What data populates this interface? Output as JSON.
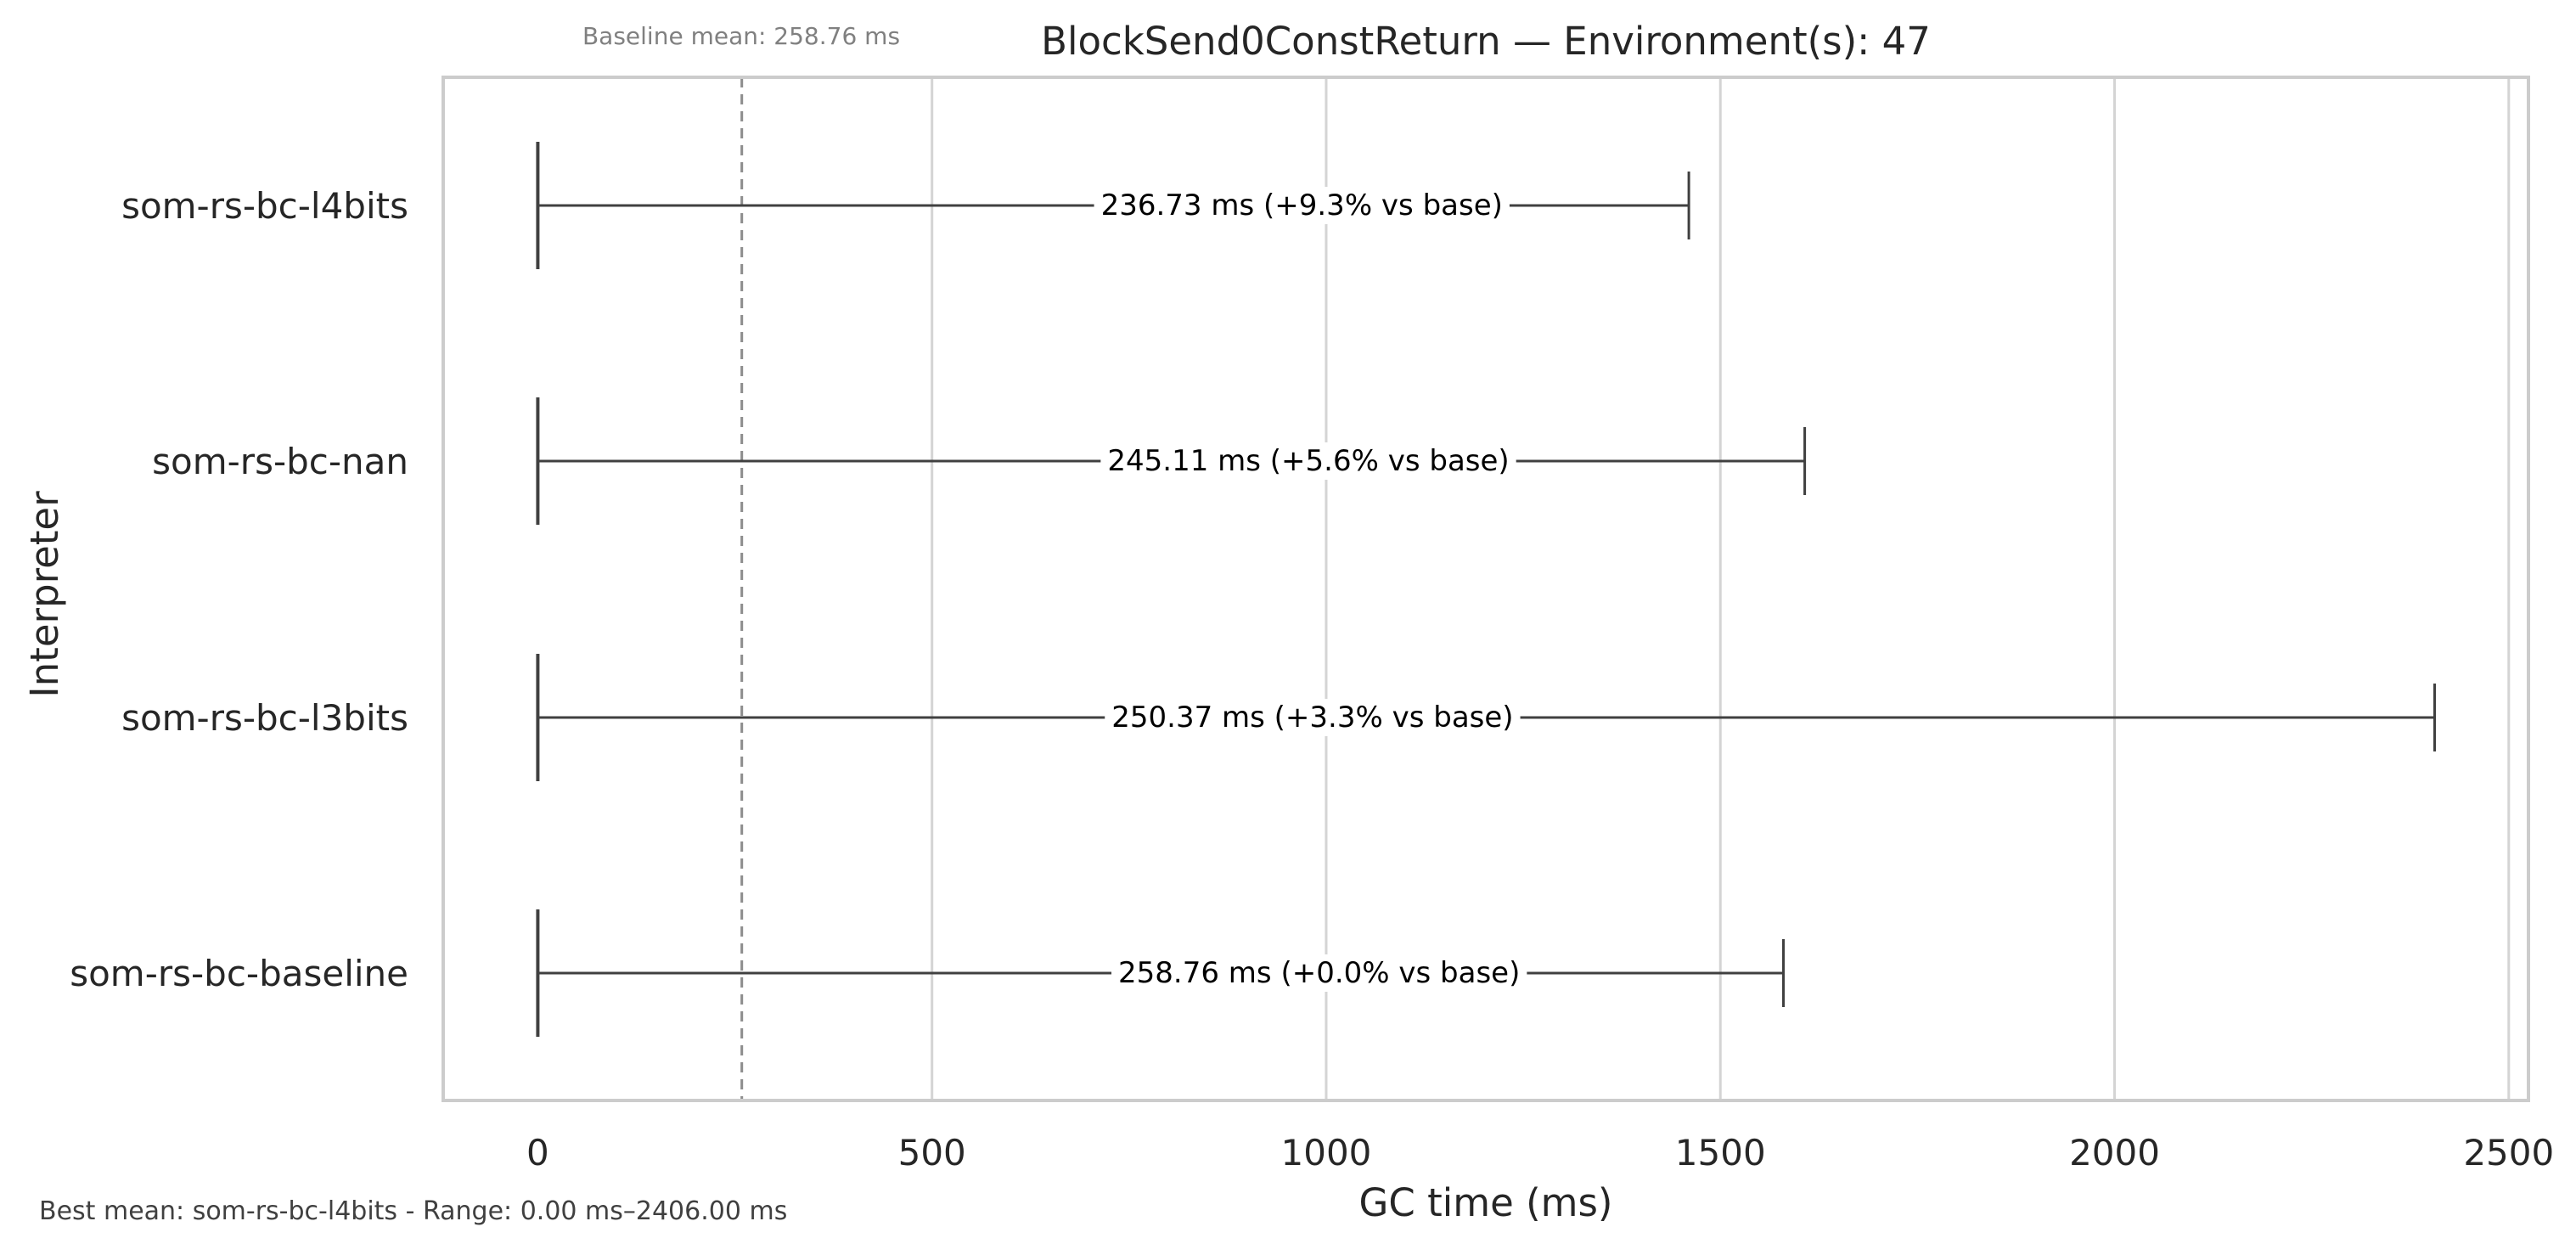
{
  "chart_data": {
    "type": "boxplot",
    "orientation": "horizontal",
    "title": "BlockSend0ConstReturn — Environment(s): 47",
    "xlabel": "GC time (ms)",
    "ylabel": "Interpreter",
    "xlim": [
      -120,
      2525
    ],
    "xticks": [
      0,
      500,
      1000,
      1500,
      2000,
      2500
    ],
    "xtick_labels": [
      "0",
      "500",
      "1000",
      "1500",
      "2000",
      "2500"
    ],
    "grid": "vertical",
    "legend": "none",
    "categories": [
      "som-rs-bc-l4bits",
      "som-rs-bc-nan",
      "som-rs-bc-l3bits",
      "som-rs-bc-baseline"
    ],
    "series": [
      {
        "category": "som-rs-bc-l4bits",
        "min": 0,
        "max": 1460,
        "mean": 236.73,
        "label": "236.73 ms  (+9.3% vs base)"
      },
      {
        "category": "som-rs-bc-nan",
        "min": 0,
        "max": 1607,
        "mean": 245.11,
        "label": "245.11 ms  (+5.6% vs base)"
      },
      {
        "category": "som-rs-bc-l3bits",
        "min": 0,
        "max": 2406,
        "mean": 250.37,
        "label": "250.37 ms  (+3.3% vs base)"
      },
      {
        "category": "som-rs-bc-baseline",
        "min": 0,
        "max": 1580,
        "mean": 258.76,
        "label": "258.76 ms  (+0.0% vs base)"
      }
    ],
    "baseline": {
      "value": 258.76,
      "label": "Baseline mean: 258.76 ms"
    },
    "footer": "Best mean: som-rs-bc-l4bits - Range: 0.00 ms–2406.00 ms"
  },
  "colors": {
    "background": "#ffffff",
    "frame": "#cccccc",
    "grid": "#d4d4d4",
    "whisker": "#404040",
    "baseline_line": "#8c8c8c",
    "text": "#262626",
    "annotation": "#000000",
    "muted_text": "#808080",
    "footer_text": "#404040"
  }
}
